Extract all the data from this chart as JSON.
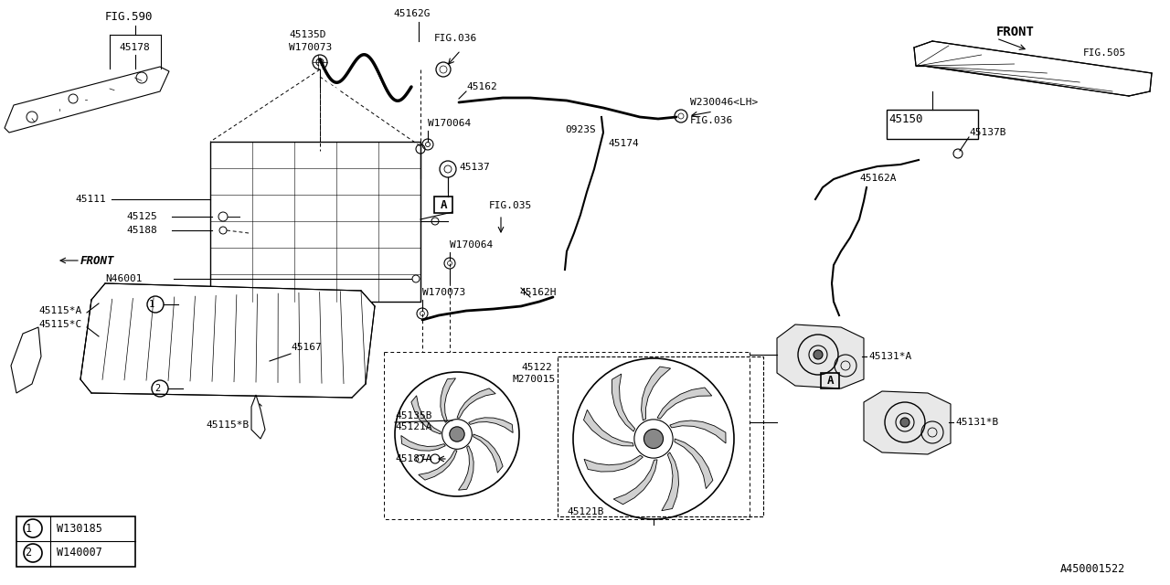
{
  "bg_color": "#ffffff",
  "lc": "#000000",
  "watermark": "A450001522",
  "legend": [
    {
      "sym": "1",
      "part": "W130185"
    },
    {
      "sym": "2",
      "part": "W140007"
    }
  ]
}
